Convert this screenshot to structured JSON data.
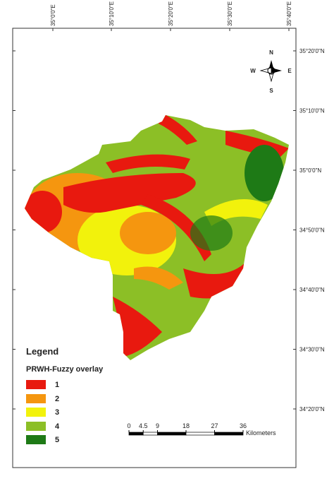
{
  "map": {
    "longitude_labels": [
      "35°0'0\"E",
      "35°10'0\"E",
      "35°20'0\"E",
      "35°30'0\"E",
      "35°40'0\"E"
    ],
    "latitude_labels": [
      "35°20'0\"N",
      "35°10'0\"N",
      "35°0'0\"N",
      "34°50'0\"N",
      "34°40'0\"N",
      "34°30'0\"N",
      "34°20'0\"N"
    ],
    "compass": {
      "north": "N",
      "south": "S",
      "east": "E",
      "west": "W"
    },
    "legend": {
      "title": "Legend",
      "subtitle": "PRWH-Fuzzy overlay",
      "classes": [
        {
          "label": "1",
          "color": "#e8190f"
        },
        {
          "label": "2",
          "color": "#f5960f"
        },
        {
          "label": "3",
          "color": "#f2f20c"
        },
        {
          "label": "4",
          "color": "#8cbf26"
        },
        {
          "label": "5",
          "color": "#1e7a16"
        }
      ]
    },
    "scale_bar": {
      "ticks": [
        0,
        4.5,
        9,
        18,
        27,
        36
      ],
      "unit": "Kilometers"
    }
  }
}
